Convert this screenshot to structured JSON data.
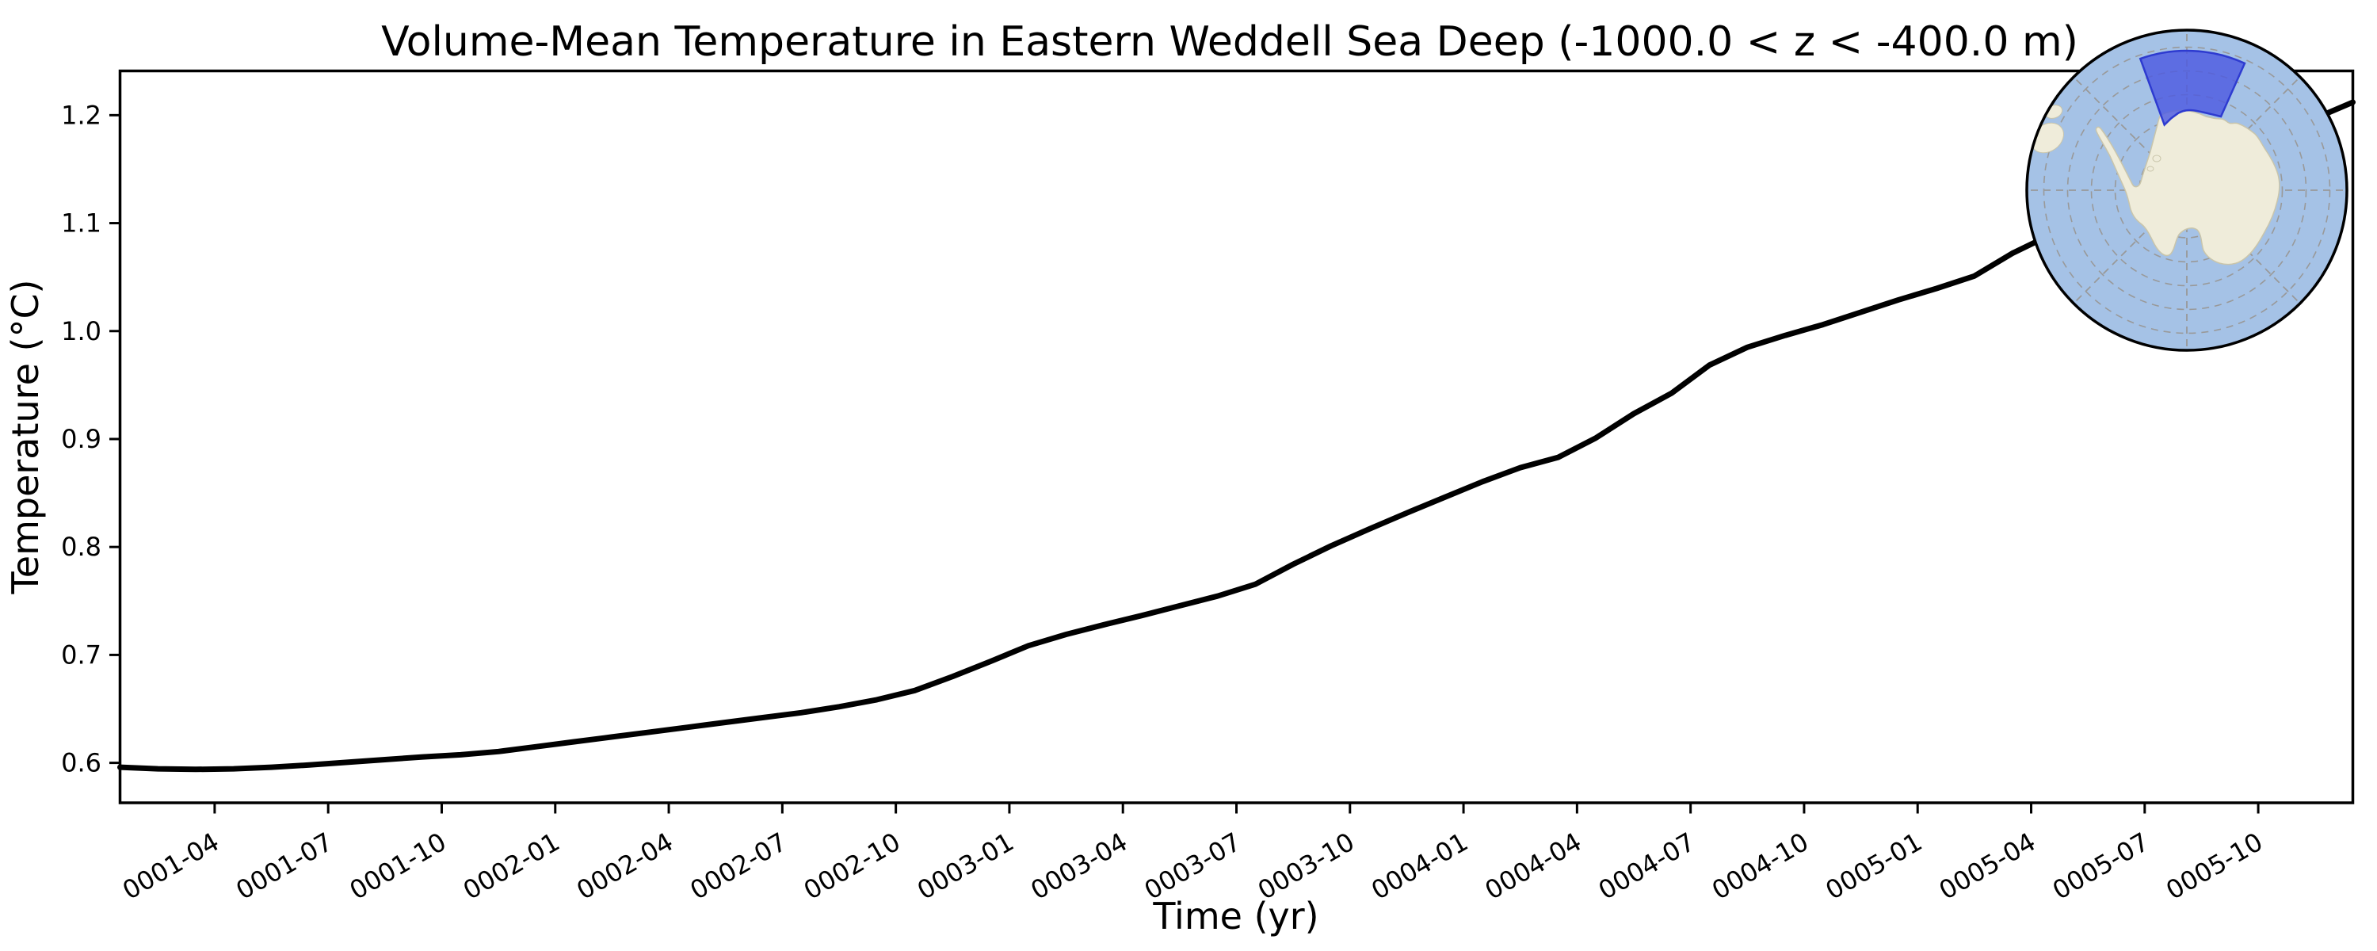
{
  "figure": {
    "title": "Volume-Mean Temperature in Eastern Weddell Sea Deep (-1000.0 < z < -400.0 m)",
    "xlabel": "Time (yr)",
    "ylabel": "Temperature (°C)"
  },
  "chart_data": {
    "type": "line",
    "title": "Volume-Mean Temperature in Eastern Weddell Sea Deep (-1000.0 < z < -400.0 m)",
    "xlabel": "Time (yr)",
    "ylabel": "Temperature (°C)",
    "grid": false,
    "legend": "none",
    "line_color": "#000000",
    "line_width": 7,
    "ylim": [
      0.563,
      1.241
    ],
    "y_ticks": [
      0.6,
      0.7,
      0.8,
      0.9,
      1.0,
      1.1,
      1.2
    ],
    "x_tick_labels": [
      "0001-04",
      "0001-07",
      "0001-10",
      "0002-01",
      "0002-04",
      "0002-07",
      "0002-10",
      "0003-01",
      "0003-04",
      "0003-07",
      "0003-10",
      "0004-01",
      "0004-04",
      "0004-07",
      "0004-10",
      "0005-01",
      "0005-04",
      "0005-07",
      "0005-10"
    ],
    "x": [
      "0001-01",
      "0001-02",
      "0001-03",
      "0001-04",
      "0001-05",
      "0001-06",
      "0001-07",
      "0001-08",
      "0001-09",
      "0001-10",
      "0001-11",
      "0001-12",
      "0002-01",
      "0002-02",
      "0002-03",
      "0002-04",
      "0002-05",
      "0002-06",
      "0002-07",
      "0002-08",
      "0002-09",
      "0002-10",
      "0002-11",
      "0002-12",
      "0003-01",
      "0003-02",
      "0003-03",
      "0003-04",
      "0003-05",
      "0003-06",
      "0003-07",
      "0003-08",
      "0003-09",
      "0003-10",
      "0003-11",
      "0003-12",
      "0004-01",
      "0004-02",
      "0004-03",
      "0004-04",
      "0004-05",
      "0004-06",
      "0004-07",
      "0004-08",
      "0004-09",
      "0004-10",
      "0004-11",
      "0004-12",
      "0005-01",
      "0005-02",
      "0005-03",
      "0005-04",
      "0005-05",
      "0005-06",
      "0005-07",
      "0005-08",
      "0005-09",
      "0005-10",
      "0005-11",
      "0005-12"
    ],
    "series": [
      {
        "name": "volume-mean temperature",
        "values": [
          0.596,
          0.5945,
          0.594,
          0.5945,
          0.596,
          0.598,
          0.6005,
          0.603,
          0.6055,
          0.6075,
          0.6105,
          0.615,
          0.6195,
          0.624,
          0.6285,
          0.633,
          0.6375,
          0.642,
          0.6465,
          0.652,
          0.6585,
          0.667,
          0.68,
          0.694,
          0.7085,
          0.719,
          0.728,
          0.7365,
          0.7455,
          0.7545,
          0.7655,
          0.784,
          0.801,
          0.8165,
          0.8315,
          0.846,
          0.8605,
          0.8735,
          0.883,
          0.901,
          0.9235,
          0.9425,
          0.9685,
          0.985,
          0.996,
          1.006,
          1.0175,
          1.029,
          1.0395,
          1.051,
          1.072,
          1.089,
          1.105,
          1.121,
          1.1365,
          1.152,
          1.167,
          1.182,
          1.197,
          1.212
        ]
      }
    ]
  },
  "inset_map": {
    "region_label": "Eastern Weddell Sea",
    "projection": "south polar stereographic",
    "ocean_color": "#a5c2e6",
    "land_color": "#efecda",
    "land_edge_color": "#c9c5ab",
    "region_fill_color": "#4d5ae0",
    "region_edge_color": "#2e3bd0",
    "graticule_color": "#999999",
    "boundary_color": "#000000"
  }
}
